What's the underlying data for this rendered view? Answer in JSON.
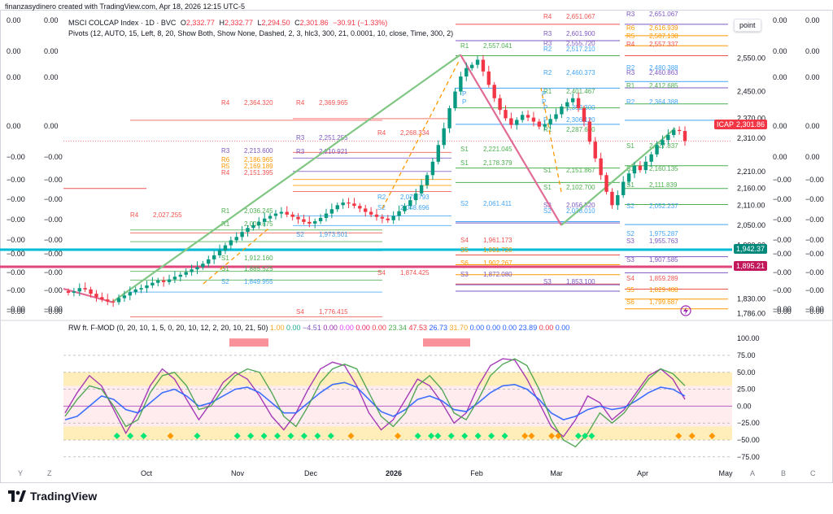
{
  "caption": "finanzasydinero created with TradingView.com, Apr 18, 2026 12:15 UTC-5",
  "brand": "TradingView",
  "point_button": "point",
  "left_scale": {
    "col1": [
      "0.00",
      "0.00",
      "0.00",
      "0.00",
      "−0.00",
      "−0.00",
      "−0.00",
      "−0.00",
      "−0.00",
      "−0.00",
      "−0.00",
      "−0.00",
      "−0.00",
      "−0.00"
    ],
    "col2": [
      "0.00",
      "0.00",
      "0.00",
      "0.00",
      "−0.00",
      "−0.00",
      "−0.00",
      "−0.00",
      "−0.00",
      "−0.00",
      "−0.00",
      "−0.00",
      "−0.00",
      "−0.00"
    ]
  },
  "right_scale": {
    "col1": [
      "0.00",
      "0.00",
      "0.00",
      "0.00",
      "0.00",
      "−0.00",
      "−0.00",
      "−0.00",
      "−0.00",
      "−0.00",
      "−0.00",
      "−0.00",
      "−0.00",
      "−0.00"
    ],
    "col2": [
      "0.00",
      "0.00",
      "0.00",
      "0.00",
      "0.00",
      "−0.00",
      "−0.00",
      "−0.00",
      "−0.00",
      "−0.00",
      "−0.00",
      "−0.00",
      "−0.00",
      "−0.00"
    ]
  },
  "legend": {
    "symbol": "MSCI COLCAP Index · 1D · BVC",
    "o_label": "O",
    "o_value": "2,332.77",
    "h_label": "H",
    "h_value": "2,332.77",
    "l_label": "L",
    "l_value": "2,294.50",
    "c_label": "C",
    "c_value": "2,301.86",
    "change": "−30.91 (−1.33%)",
    "pivots": "Pivots (12, AUTO, 15, Left, 8, 20, Show Both, Show None, Dashed, 2, 3, hlc3, 300, 21, 0.0001, 10, close, Time, 300, 2)",
    "osc_name": "RW ft. F-MOD (0, 20, 10, 1, 5, 0, 20, 10, 12, 2, 20, 10, 21, 50)",
    "osc_values": [
      {
        "v": "1.00",
        "c": "#f5a623"
      },
      {
        "v": "0.00",
        "c": "#22ab94"
      },
      {
        "v": "−4.51",
        "c": "#7e57c2"
      },
      {
        "v": "0.00",
        "c": "#9c27b0"
      },
      {
        "v": "0.00",
        "c": "#e040fb"
      },
      {
        "v": "0.00",
        "c": "#e91e63"
      },
      {
        "v": "0.00",
        "c": "#f23645"
      },
      {
        "v": "23.34",
        "c": "#4caf50"
      },
      {
        "v": "47.53",
        "c": "#f23645"
      },
      {
        "v": "26.73",
        "c": "#2962ff"
      },
      {
        "v": "31.70",
        "c": "#f5a623"
      },
      {
        "v": "0.00",
        "c": "#2962ff"
      },
      {
        "v": "0.00",
        "c": "#2962ff"
      },
      {
        "v": "0.00",
        "c": "#2962ff"
      },
      {
        "v": "23.89",
        "c": "#2962ff"
      },
      {
        "v": "0.00",
        "c": "#f23645"
      },
      {
        "v": "0.00",
        "c": "#2962ff"
      }
    ]
  },
  "price_badges": {
    "symbol_tag": "ICAP",
    "current": "2,301.86",
    "level_cyan": "1,942.37",
    "level_pink": "1,895.21"
  },
  "colors": {
    "up": "#089981",
    "down": "#f23645",
    "cyan": "#00bcd4",
    "pink": "#e0457b",
    "zigzag_up": "#81c784",
    "zigzag_down": "#e06c95",
    "pivot_p": "#42a5f5",
    "r_purple": "#7e57c2",
    "s_green": "#4caf50",
    "r_red": "#ef5350",
    "orange": "#ff9800"
  },
  "corner_labels": {
    "y": "Y",
    "z": "Z",
    "a": "A",
    "b": "B",
    "c": "C"
  },
  "chart_data": [
    {
      "type": "candlestick",
      "title": "MSCI COLCAP Index · 1D · BVC",
      "x_labels": [
        "Oct",
        "Nov",
        "Dec",
        "2026",
        "Feb",
        "Mar",
        "Apr",
        "May"
      ],
      "ylim": [
        1775,
        2680
      ],
      "y_ticks": [
        "2,550.00",
        "2,450.00",
        "2,370.00",
        "2,310.00",
        "2,210.00",
        "2,160.00",
        "2,110.00",
        "2,050.00",
        "1,990.00",
        "1,830.00",
        "1,786.00"
      ],
      "close": [
        1848,
        1852,
        1862,
        1858,
        1845,
        1835,
        1828,
        1822,
        1820,
        1832,
        1840,
        1850,
        1858,
        1862,
        1870,
        1878,
        1885,
        1880,
        1888,
        1896,
        1902,
        1910,
        1918,
        1925,
        1935,
        1948,
        1960,
        1975,
        1990,
        2005,
        2015,
        2030,
        2042,
        2050,
        2060,
        2070,
        2078,
        2085,
        2090,
        2082,
        2075,
        2068,
        2060,
        2055,
        2062,
        2072,
        2085,
        2098,
        2110,
        2118,
        2115,
        2108,
        2100,
        2090,
        2082,
        2075,
        2070,
        2065,
        2078,
        2092,
        2108,
        2125,
        2145,
        2170,
        2200,
        2240,
        2290,
        2340,
        2400,
        2450,
        2495,
        2520,
        2530,
        2545,
        2510,
        2470,
        2430,
        2395,
        2370,
        2350,
        2365,
        2380,
        2372,
        2360,
        2345,
        2352,
        2368,
        2382,
        2405,
        2418,
        2430,
        2400,
        2360,
        2300,
        2250,
        2200,
        2150,
        2110,
        2140,
        2180,
        2205,
        2228,
        2215,
        2240,
        2262,
        2290,
        2305,
        2320,
        2335,
        2332,
        2302
      ],
      "series_lines": [
        {
          "name": "Pivot levels R4",
          "value": 2651.067
        },
        {
          "name": "Pivot levels R3",
          "value": 2601.9
        },
        {
          "name": "Pivot levels R2",
          "value": 2460.373
        },
        {
          "name": "Pivot levels R1",
          "value": 2401.467
        },
        {
          "name": "Pivot levels P",
          "value": 2306.12
        },
        {
          "name": "Pivot levels S1",
          "value": 2178.379
        },
        {
          "name": "Pivot levels S2",
          "value": 2061.411
        },
        {
          "name": "Pivot levels S3",
          "value": 2056.52
        },
        {
          "name": "Pivot levels S4",
          "value": 1961.173
        },
        {
          "name": "Pivot levels S5",
          "value": 1931.72
        },
        {
          "name": "Pivot levels S6",
          "value": 1902.267
        }
      ],
      "pivot_labels": [
        {
          "tag": "R4",
          "value": "2,651.067",
          "color": "#ef5350"
        },
        {
          "tag": "R3",
          "value": "2,601.900",
          "color": "#7e57c2"
        },
        {
          "tag": "R1",
          "value": "2,557.041",
          "color": "#4caf50"
        },
        {
          "tag": "R2",
          "value": "2,460.373",
          "color": "#42a5f5"
        },
        {
          "tag": "R1",
          "value": "2,401.467",
          "color": "#4caf50"
        },
        {
          "tag": "P",
          "value": "2,352.300",
          "color": "#42a5f5"
        },
        {
          "tag": "R4",
          "value": "2,364.320",
          "color": "#ef5350"
        },
        {
          "tag": "R4",
          "value": "2,369.965",
          "color": "#ef5350"
        },
        {
          "tag": "R4",
          "value": "2,268.334",
          "color": "#ef5350"
        },
        {
          "tag": "S1",
          "value": "2,221.045",
          "color": "#4caf50"
        },
        {
          "tag": "S1",
          "value": "2,178.379",
          "color": "#4caf50"
        },
        {
          "tag": "S2",
          "value": "2,061.411",
          "color": "#42a5f5"
        },
        {
          "tag": "S3",
          "value": "2,056.520",
          "color": "#7e57c2"
        },
        {
          "tag": "S4",
          "value": "1,961.173",
          "color": "#ef5350"
        },
        {
          "tag": "S5",
          "value": "1,931.720",
          "color": "#ff9800"
        },
        {
          "tag": "S6",
          "value": "1,902.267",
          "color": "#ff9800"
        },
        {
          "tag": "S4",
          "value": "1,874.425",
          "color": "#ef5350"
        },
        {
          "tag": "S3",
          "value": "1,872.080",
          "color": "#7e57c2"
        },
        {
          "tag": "S3",
          "value": "1,853.100",
          "color": "#7e57c2"
        },
        {
          "tag": "R4",
          "value": "2,027.255",
          "color": "#ef5350"
        },
        {
          "tag": "R3",
          "value": "2,213.600",
          "color": "#7e57c2"
        },
        {
          "tag": "R6",
          "value": "2,186.965",
          "color": "#ff9800"
        },
        {
          "tag": "R5",
          "value": "2,169.189",
          "color": "#ff9800"
        },
        {
          "tag": "R4",
          "value": "2,151.395",
          "color": "#ef5350"
        },
        {
          "tag": "R3",
          "value": "2,251.255",
          "color": "#7e57c2"
        },
        {
          "tag": "R3",
          "value": "2,210.921",
          "color": "#7e57c2"
        },
        {
          "tag": "R1",
          "value": "2,000.675",
          "color": "#4caf50"
        },
        {
          "tag": "R1",
          "value": "2,036.245",
          "color": "#4caf50"
        },
        {
          "tag": "S2",
          "value": "1,973.501",
          "color": "#42a5f5"
        },
        {
          "tag": "S1",
          "value": "1,912.160",
          "color": "#4caf50"
        },
        {
          "tag": "S1",
          "value": "1,885.525",
          "color": "#4caf50"
        },
        {
          "tag": "S2",
          "value": "1,849.955",
          "color": "#42a5f5"
        },
        {
          "tag": "S4",
          "value": "1,776.415",
          "color": "#ef5350"
        },
        {
          "tag": "S2",
          "value": "2,048.696",
          "color": "#42a5f5"
        },
        {
          "tag": "R2",
          "value": "2,078.793",
          "color": "#42a5f5"
        },
        {
          "tag": "R3",
          "value": "2,651.067",
          "color": "#7e57c2"
        },
        {
          "tag": "R6",
          "value": "2,616.939",
          "color": "#ff9800"
        },
        {
          "tag": "R5",
          "value": "2,587.138",
          "color": "#ff9800"
        },
        {
          "tag": "R4",
          "value": "2,557.337",
          "color": "#ef5350"
        },
        {
          "tag": "R2",
          "value": "2,480.388",
          "color": "#42a5f5"
        },
        {
          "tag": "R3",
          "value": "2,460.863",
          "color": "#7e57c2"
        },
        {
          "tag": "R1",
          "value": "2,412.685",
          "color": "#4caf50"
        },
        {
          "tag": "R2",
          "value": "2,364.388",
          "color": "#42a5f5"
        },
        {
          "tag": "S1",
          "value": "2,227.837",
          "color": "#4caf50"
        },
        {
          "tag": "S1",
          "value": "2,160.135",
          "color": "#4caf50"
        },
        {
          "tag": "S1",
          "value": "2,111.839",
          "color": "#4caf50"
        },
        {
          "tag": "S2",
          "value": "2,052.237",
          "color": "#42a5f5"
        },
        {
          "tag": "S2",
          "value": "1,975.287",
          "color": "#42a5f5"
        },
        {
          "tag": "S3",
          "value": "1,955.763",
          "color": "#7e57c2"
        },
        {
          "tag": "S3",
          "value": "1,907.585",
          "color": "#7e57c2"
        },
        {
          "tag": "S4",
          "value": "1,859.289",
          "color": "#ef5350"
        },
        {
          "tag": "S5",
          "value": "1,829.488",
          "color": "#ff9800"
        },
        {
          "tag": "S6",
          "value": "1,799.687",
          "color": "#ff9800"
        },
        {
          "tag": "S1",
          "value": "2,151.867",
          "color": "#4caf50"
        },
        {
          "tag": "S2",
          "value": "2,038.010",
          "color": "#42a5f5"
        },
        {
          "tag": "S1",
          "value": "2,102.700",
          "color": "#4caf50"
        },
        {
          "tag": "R2",
          "value": "2,517.210",
          "color": "#42a5f5"
        },
        {
          "tag": "R3",
          "value": "2,555.720",
          "color": "#7e57c2"
        },
        {
          "tag": "R1",
          "value": "2,287.610",
          "color": "#4caf50"
        },
        {
          "tag": "P",
          "value": "2,306.120",
          "color": "#42a5f5"
        }
      ]
    },
    {
      "type": "line",
      "title": "RW ft. F-MOD",
      "ylim": [
        -80,
        105
      ],
      "y_ticks": [
        "100.00",
        "75.00",
        "50.00",
        "25.00",
        "0.00",
        "−25.00",
        "−50.00",
        "−75.00"
      ],
      "series": [
        {
          "name": "purple",
          "values": [
            -10,
            20,
            45,
            30,
            -5,
            -40,
            -10,
            30,
            55,
            40,
            10,
            -20,
            5,
            35,
            50,
            40,
            15,
            -15,
            -35,
            -10,
            25,
            55,
            65,
            60,
            30,
            -10,
            -35,
            -20,
            10,
            40,
            30,
            5,
            -25,
            -10,
            30,
            60,
            70,
            68,
            40,
            5,
            -30,
            -45,
            -20,
            15,
            5,
            -20,
            -5,
            20,
            45,
            55,
            40,
            10
          ]
        },
        {
          "name": "blue",
          "values": [
            -20,
            -15,
            0,
            15,
            10,
            -5,
            -10,
            5,
            20,
            25,
            15,
            0,
            5,
            15,
            25,
            28,
            20,
            5,
            -10,
            -10,
            5,
            20,
            32,
            35,
            28,
            10,
            -8,
            -15,
            -5,
            10,
            15,
            8,
            -5,
            -8,
            5,
            20,
            30,
            32,
            25,
            10,
            -10,
            -20,
            -15,
            -5,
            0,
            -5,
            -2,
            8,
            20,
            28,
            25,
            15
          ]
        },
        {
          "name": "green",
          "values": [
            -15,
            10,
            30,
            25,
            0,
            -30,
            -20,
            20,
            45,
            50,
            30,
            -5,
            0,
            25,
            45,
            55,
            50,
            20,
            -15,
            -30,
            0,
            35,
            55,
            62,
            55,
            20,
            -15,
            -30,
            -10,
            30,
            45,
            25,
            -10,
            -20,
            10,
            45,
            62,
            70,
            60,
            25,
            -20,
            -50,
            -60,
            -40,
            -10,
            -25,
            -10,
            15,
            40,
            55,
            48,
            30
          ]
        }
      ],
      "markers": [
        {
          "name": "green_diamonds",
          "positions": [
            0.08,
            0.1,
            0.12,
            0.2,
            0.26,
            0.28,
            0.3,
            0.32,
            0.34,
            0.36,
            0.38,
            0.4,
            0.53,
            0.55,
            0.56,
            0.58,
            0.6,
            0.62,
            0.64,
            0.66,
            0.77,
            0.78,
            0.79
          ]
        },
        {
          "name": "orange_diamonds",
          "positions": [
            0.16,
            0.43,
            0.5,
            0.69,
            0.7,
            0.73,
            0.74,
            0.92,
            0.94,
            0.97
          ]
        }
      ]
    }
  ]
}
